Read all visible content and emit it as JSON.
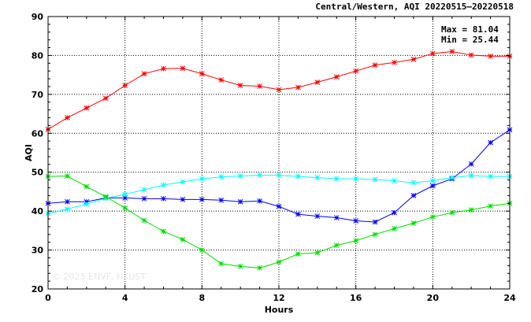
{
  "chart_data": {
    "type": "line",
    "title": "Central/Western, AQI 20220515–20220518",
    "xlabel": "Hours",
    "ylabel": "AQI",
    "xlim": [
      0,
      24
    ],
    "ylim": [
      20,
      90
    ],
    "xticks": [
      0,
      4,
      8,
      12,
      16,
      20,
      24
    ],
    "yticks": [
      20,
      30,
      40,
      50,
      60,
      70,
      80,
      90
    ],
    "grid": true,
    "stats": {
      "max": "Max = 81.04",
      "min": "Min = 25.44"
    },
    "watermark": "© 2025  ENVF, HKUST",
    "x": [
      0,
      1,
      2,
      3,
      4,
      5,
      6,
      7,
      8,
      9,
      10,
      11,
      12,
      13,
      14,
      15,
      16,
      17,
      18,
      19,
      20,
      21,
      22,
      23,
      24
    ],
    "series": [
      {
        "color": "#ff0000",
        "values": [
          61.0,
          64.0,
          66.5,
          69.0,
          72.3,
          75.3,
          76.6,
          76.7,
          75.3,
          73.7,
          72.3,
          72.1,
          71.2,
          71.8,
          73.1,
          74.5,
          76.0,
          77.5,
          78.2,
          79.0,
          80.5,
          81.0,
          80.1,
          79.8,
          79.8
        ]
      },
      {
        "color": "#0000ff",
        "values": [
          42.0,
          42.4,
          42.4,
          43.4,
          43.4,
          43.2,
          43.2,
          43.0,
          43.0,
          42.8,
          42.4,
          42.6,
          41.2,
          39.2,
          38.7,
          38.3,
          37.5,
          37.2,
          39.6,
          44.0,
          46.5,
          48.3,
          52.1,
          57.6,
          60.9
        ]
      },
      {
        "color": "#00ffff",
        "values": [
          39.4,
          40.5,
          41.8,
          43.3,
          44.3,
          45.5,
          46.7,
          47.5,
          48.3,
          48.8,
          49.0,
          49.2,
          49.2,
          48.9,
          48.6,
          48.3,
          48.3,
          48.1,
          47.8,
          47.3,
          47.8,
          48.6,
          49.1,
          48.9,
          48.9
        ]
      },
      {
        "color": "#00dd00",
        "values": [
          48.9,
          49.0,
          46.3,
          43.7,
          40.8,
          37.6,
          34.8,
          32.7,
          30.0,
          26.5,
          25.8,
          25.4,
          26.9,
          29.0,
          29.3,
          31.2,
          32.4,
          34.0,
          35.5,
          36.9,
          38.5,
          39.6,
          40.3,
          41.3,
          42.0
        ]
      }
    ]
  }
}
